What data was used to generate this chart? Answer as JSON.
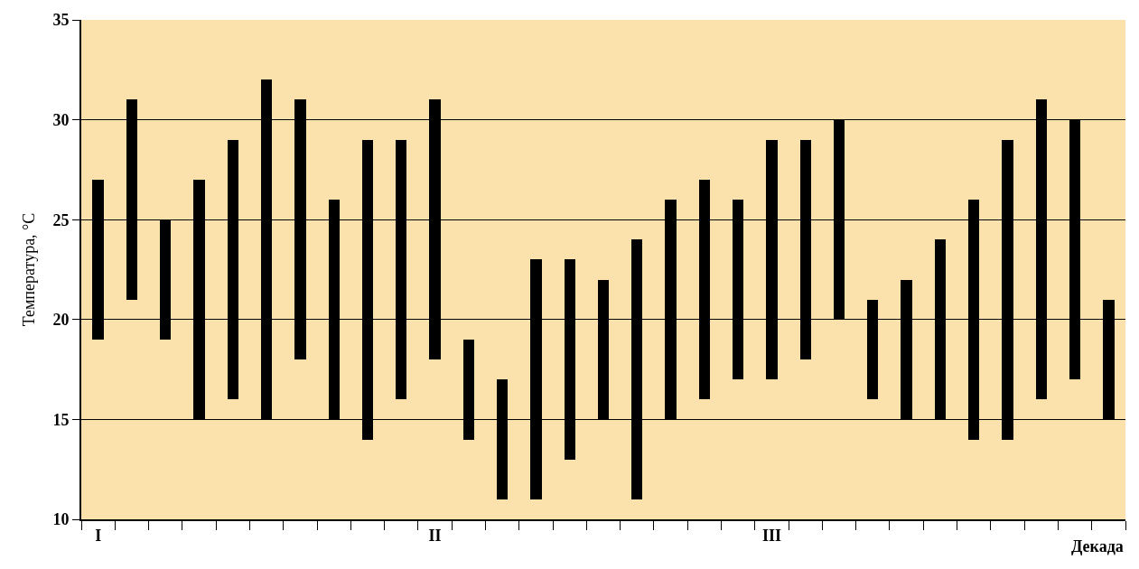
{
  "chart_data": {
    "type": "bar",
    "ylabel": "Температура, °C",
    "xlabel": "Декада",
    "categories": [
      "I",
      null,
      null,
      null,
      null,
      null,
      null,
      null,
      null,
      null,
      "II",
      null,
      null,
      null,
      null,
      null,
      null,
      null,
      null,
      null,
      "III",
      null,
      null,
      null,
      null,
      null,
      null,
      null,
      null,
      null,
      null
    ],
    "base": [
      19,
      21,
      19,
      15,
      16,
      15,
      18,
      15,
      14,
      16,
      18,
      14,
      11,
      11,
      13,
      15,
      11,
      15,
      16,
      17,
      17,
      18,
      20,
      16,
      15,
      15,
      14,
      14,
      16,
      17,
      15
    ],
    "values": [
      8,
      10,
      6,
      12,
      13,
      17,
      13,
      11,
      15,
      13,
      13,
      5,
      6,
      12,
      10,
      7,
      13,
      11,
      11,
      9,
      12,
      11,
      10,
      5,
      7,
      9,
      12,
      15,
      15,
      13,
      6
    ],
    "color": "#000000",
    "ylim": [
      10,
      35
    ],
    "yticks": [
      10,
      15,
      20,
      25,
      30,
      35
    ],
    "grid": "y"
  }
}
